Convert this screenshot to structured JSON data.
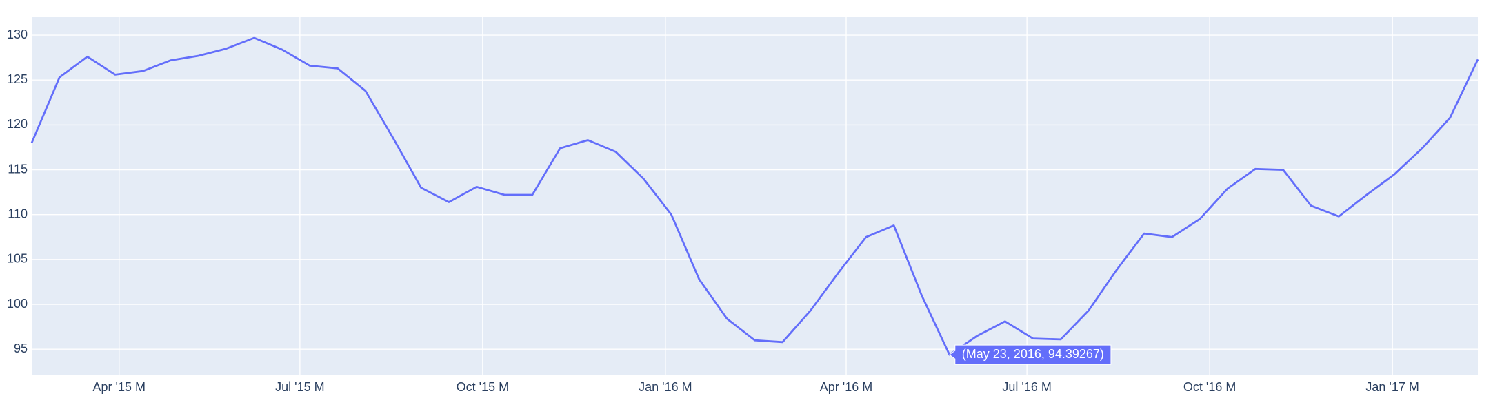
{
  "chart_data": {
    "type": "line",
    "x": [
      "2015-02-16",
      "2015-03-02",
      "2015-03-16",
      "2015-03-30",
      "2015-04-13",
      "2015-04-27",
      "2015-05-11",
      "2015-05-25",
      "2015-06-08",
      "2015-06-22",
      "2015-07-06",
      "2015-07-20",
      "2015-08-03",
      "2015-08-17",
      "2015-08-31",
      "2015-09-14",
      "2015-09-28",
      "2015-10-12",
      "2015-10-26",
      "2015-11-09",
      "2015-11-23",
      "2015-12-07",
      "2015-12-21",
      "2016-01-04",
      "2016-01-18",
      "2016-02-01",
      "2016-02-15",
      "2016-02-29",
      "2016-03-14",
      "2016-03-28",
      "2016-04-11",
      "2016-04-25",
      "2016-05-09",
      "2016-05-23",
      "2016-06-06",
      "2016-06-20",
      "2016-07-04",
      "2016-07-18",
      "2016-08-01",
      "2016-08-15",
      "2016-08-29",
      "2016-09-12",
      "2016-09-26",
      "2016-10-10",
      "2016-10-24",
      "2016-11-07",
      "2016-11-21",
      "2016-12-05",
      "2016-12-19",
      "2017-01-02",
      "2017-01-16",
      "2017-01-30",
      "2017-02-13"
    ],
    "series": [
      {
        "color": "#636efa",
        "values": [
          118,
          125.3,
          127.6,
          125.6,
          126,
          127.2,
          127.7,
          128.5,
          129.7,
          128.4,
          126.6,
          126.3,
          123.8,
          118.5,
          113,
          111.4,
          113.1,
          112.2,
          112.2,
          117.4,
          118.3,
          117,
          114,
          110,
          102.8,
          98.4,
          96,
          95.8,
          99.3,
          103.5,
          107.5,
          108.8,
          101,
          94.39267,
          96.5,
          98.1,
          96.2,
          96.1,
          99.3,
          103.8,
          107.9,
          107.5,
          109.5,
          112.9,
          115.1,
          115,
          111,
          109.8,
          112.2,
          114.5,
          117.4,
          120.8,
          127.3
        ]
      }
    ],
    "xlim": [
      "2015-02-16",
      "2017-02-13"
    ],
    "xticks": [
      {
        "value": "2015-04-01",
        "label": "Apr '15 M"
      },
      {
        "value": "2015-07-01",
        "label": "Jul '15 M"
      },
      {
        "value": "2015-10-01",
        "label": "Oct '15 M"
      },
      {
        "value": "2016-01-01",
        "label": "Jan '16 M"
      },
      {
        "value": "2016-04-01",
        "label": "Apr '16 M"
      },
      {
        "value": "2016-07-01",
        "label": "Jul '16 M"
      },
      {
        "value": "2016-10-01",
        "label": "Oct '16 M"
      },
      {
        "value": "2017-01-01",
        "label": "Jan '17 M"
      }
    ],
    "ylim": [
      92.1,
      132.0
    ],
    "yticks": [
      95,
      100,
      105,
      110,
      115,
      120,
      125,
      130
    ],
    "grid": true,
    "hover_label": "(May 23, 2016, 94.39267)"
  }
}
